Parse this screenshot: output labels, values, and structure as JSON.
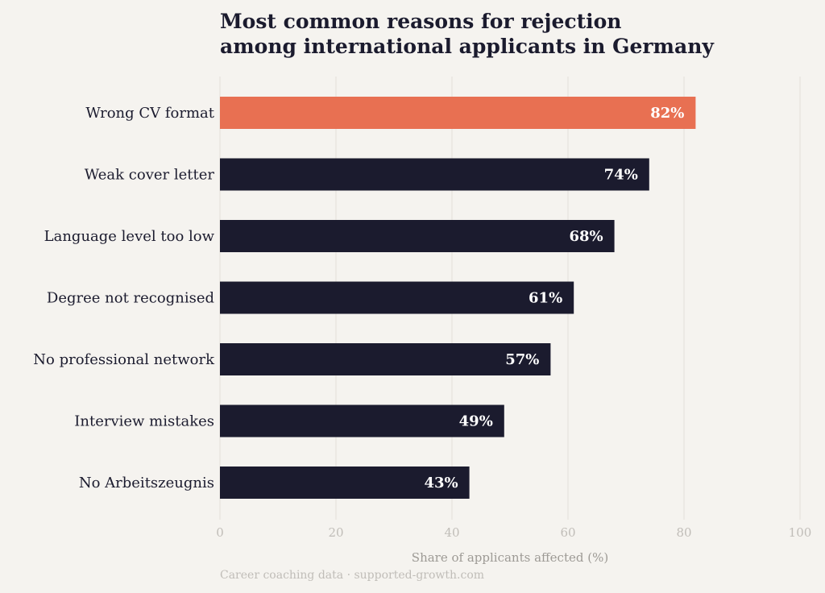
{
  "chart_data": {
    "type": "bar",
    "orientation": "horizontal",
    "title_lines": [
      "Most common reasons for rejection",
      "among international applicants in Germany"
    ],
    "categories": [
      "Wrong CV format",
      "Weak cover letter",
      "Language level too low",
      "Degree not recognised",
      "No professional network",
      "Interview mistakes",
      "No Arbeitszeugnis"
    ],
    "values": [
      82,
      74,
      68,
      61,
      57,
      49,
      43
    ],
    "data_labels": [
      "82%",
      "74%",
      "68%",
      "61%",
      "57%",
      "49%",
      "43%"
    ],
    "xlabel": "Share of applicants affected (%)",
    "ylabel": "",
    "xlim": [
      0,
      100
    ],
    "xticks": [
      0,
      20,
      40,
      60,
      80,
      100
    ],
    "grid": "vertical",
    "source": "Career coaching data · supported-growth.com",
    "colors": {
      "highlight": "#e87052",
      "default": "#1b1b2e",
      "grid": "#e2dfda"
    },
    "highlight_index": 0
  }
}
